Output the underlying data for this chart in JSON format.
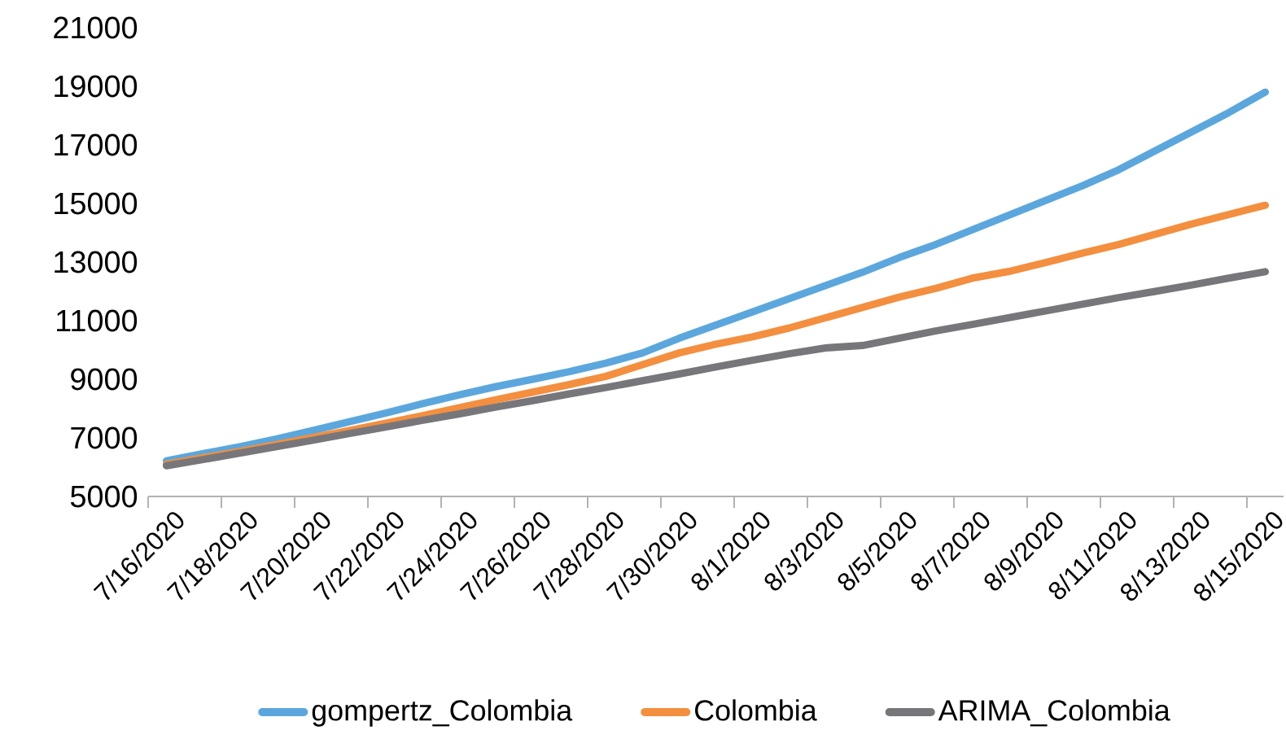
{
  "chart_data": {
    "type": "line",
    "categories": [
      "7/16/2020",
      null,
      "7/18/2020",
      null,
      "7/20/2020",
      null,
      "7/22/2020",
      null,
      "7/24/2020",
      null,
      "7/26/2020",
      null,
      "7/28/2020",
      null,
      "7/30/2020",
      null,
      "8/1/2020",
      null,
      "8/3/2020",
      null,
      "8/5/2020",
      null,
      "8/7/2020",
      null,
      "8/9/2020",
      null,
      "8/11/2020",
      null,
      "8/13/2020",
      null,
      "8/15/2020"
    ],
    "series": [
      {
        "name": "gompertz_Colombia",
        "color": "#5ba7dd",
        "values": [
          6220,
          6460,
          6700,
          6960,
          7250,
          7550,
          7850,
          8170,
          8470,
          8750,
          9000,
          9260,
          9550,
          9900,
          10400,
          10850,
          11300,
          11750,
          12200,
          12650,
          13150,
          13600,
          14100,
          14600,
          15100,
          15600,
          16150,
          16800,
          17450,
          18100,
          18800
        ]
      },
      {
        "name": "Colombia",
        "color": "#f38f3f",
        "values": [
          6100,
          6320,
          6540,
          6770,
          7010,
          7250,
          7500,
          7760,
          8030,
          8300,
          8560,
          8820,
          9100,
          9500,
          9900,
          10200,
          10450,
          10750,
          11100,
          11450,
          11800,
          12100,
          12450,
          12680,
          12980,
          13300,
          13600,
          13950,
          14300,
          14620,
          14940
        ]
      },
      {
        "name": "ARIMA_Colombia",
        "color": "#77777b",
        "values": [
          6050,
          6260,
          6480,
          6700,
          6920,
          7150,
          7370,
          7600,
          7820,
          8050,
          8270,
          8500,
          8720,
          8950,
          9180,
          9420,
          9650,
          9870,
          10070,
          10150,
          10400,
          10650,
          10870,
          11100,
          11330,
          11560,
          11790,
          12000,
          12220,
          12450,
          12670
        ]
      }
    ],
    "ylim": [
      5000,
      21000
    ],
    "yticks": [
      5000,
      7000,
      9000,
      11000,
      13000,
      15000,
      17000,
      19000,
      21000
    ],
    "grid": false,
    "legend": "bottom",
    "marker": "none",
    "line_style": "solid"
  }
}
